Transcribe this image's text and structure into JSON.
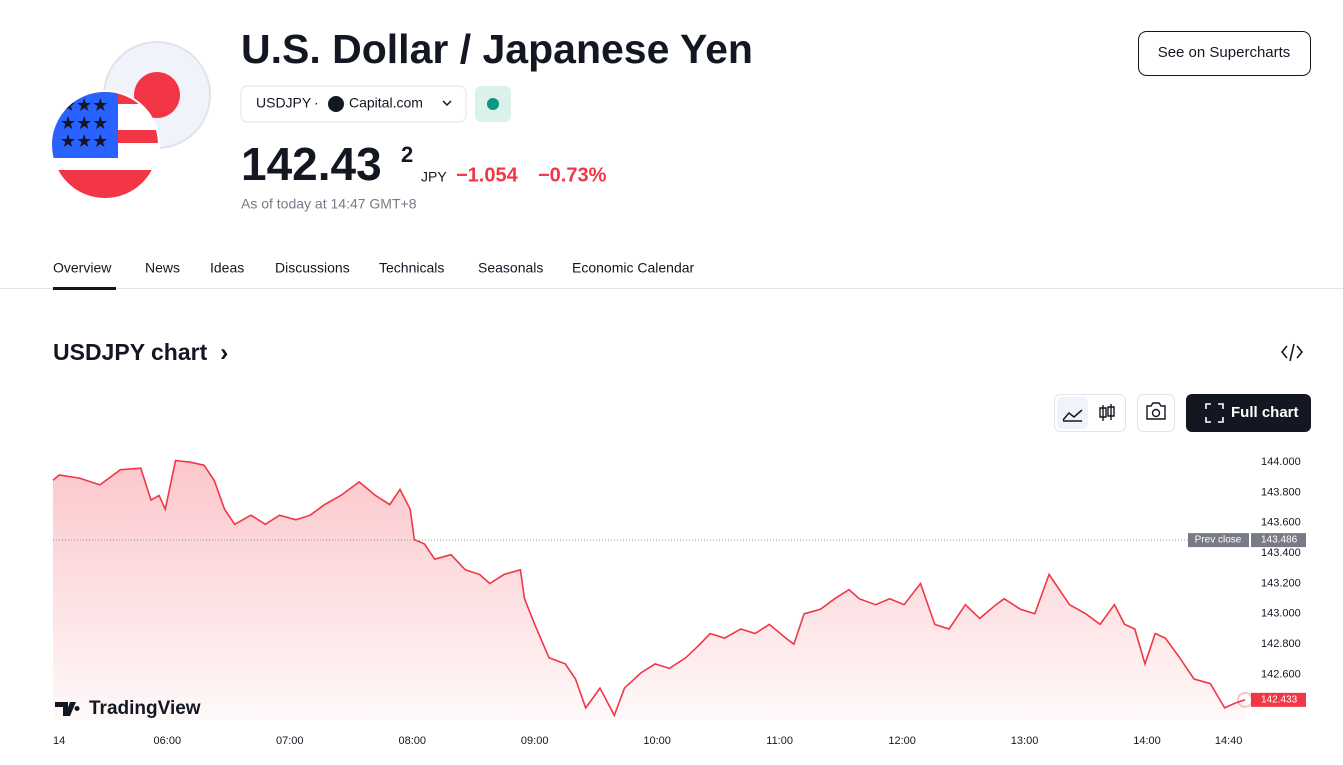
{
  "header": {
    "title": "U.S. Dollar / Japanese Yen",
    "symbol": "USDJPY",
    "separator": "·",
    "source": "Capital.com",
    "price": "142.43",
    "price_last_digit": "2",
    "currency": "JPY",
    "change": "−1.054",
    "change_percent": "−0.73%",
    "as_of": "As of today at 14:47 GMT+8",
    "button": "See on Supercharts"
  },
  "tabs": [
    "Overview",
    "News",
    "Ideas",
    "Discussions",
    "Technicals",
    "Seasonals",
    "Economic Calendar"
  ],
  "chart_section": {
    "title": "USDJPY chart",
    "arrow": "›",
    "full_chart": "Full chart",
    "brand": "TradingView"
  },
  "chart_data": {
    "type": "line",
    "color": "#f23645",
    "x": [
      304,
      307,
      317,
      327,
      337,
      347,
      352,
      356,
      359,
      364,
      371,
      378,
      383,
      388,
      393,
      401,
      408,
      415,
      423,
      430,
      437,
      445,
      454,
      462,
      469,
      474,
      479,
      481,
      486,
      491,
      499,
      506,
      513,
      518,
      525,
      533,
      535,
      540,
      547,
      555,
      560,
      565,
      572,
      579,
      584,
      592,
      599,
      606,
      614,
      621,
      626,
      633,
      641,
      648,
      655,
      663,
      667,
      672,
      680,
      687,
      694,
      699,
      707,
      714,
      721,
      729,
      736,
      743,
      751,
      758,
      766,
      770,
      778,
      785,
      792,
      797,
      802,
      810,
      817,
      824,
      829,
      834,
      839,
      844,
      849,
      856,
      863,
      871,
      878,
      883,
      888
    ],
    "values": [
      143.88,
      143.915,
      143.895,
      143.85,
      143.95,
      143.96,
      143.75,
      143.78,
      143.69,
      144.01,
      144.0,
      143.98,
      143.88,
      143.69,
      143.59,
      143.65,
      143.59,
      143.65,
      143.62,
      143.65,
      143.72,
      143.78,
      143.87,
      143.78,
      143.72,
      143.82,
      143.69,
      143.49,
      143.46,
      143.36,
      143.39,
      143.29,
      143.26,
      143.2,
      143.26,
      143.29,
      143.1,
      142.93,
      142.71,
      142.67,
      142.57,
      142.38,
      142.51,
      142.33,
      142.51,
      142.61,
      142.67,
      142.64,
      142.71,
      142.8,
      142.87,
      142.84,
      142.9,
      142.87,
      142.93,
      142.84,
      142.8,
      143.0,
      143.03,
      143.1,
      143.16,
      143.1,
      143.06,
      143.1,
      143.06,
      143.2,
      142.93,
      142.9,
      143.06,
      142.97,
      143.06,
      143.1,
      143.03,
      143.0,
      143.26,
      143.16,
      143.06,
      143.0,
      142.93,
      143.06,
      142.93,
      142.9,
      142.67,
      142.87,
      142.84,
      142.71,
      142.57,
      142.54,
      142.38,
      142.41,
      142.433
    ],
    "xlim": [
      304,
      888
    ],
    "xticks": [
      {
        "value": 307,
        "label": "14"
      },
      {
        "value": 360,
        "label": "06:00"
      },
      {
        "value": 420,
        "label": "07:00"
      },
      {
        "value": 480,
        "label": "08:00"
      },
      {
        "value": 540,
        "label": "09:00"
      },
      {
        "value": 600,
        "label": "10:00"
      },
      {
        "value": 660,
        "label": "11:00"
      },
      {
        "value": 720,
        "label": "12:00"
      },
      {
        "value": 780,
        "label": "13:00"
      },
      {
        "value": 840,
        "label": "14:00"
      },
      {
        "value": 880,
        "label": "14:40"
      }
    ],
    "ylim": [
      142.3,
      144.08
    ],
    "yticks": [
      {
        "value": 142.6,
        "label": "142.600"
      },
      {
        "value": 142.8,
        "label": "142.800"
      },
      {
        "value": 143,
        "label": "143.000"
      },
      {
        "value": 143.2,
        "label": "143.200"
      },
      {
        "value": 143.4,
        "label": "143.400"
      },
      {
        "value": 143.6,
        "label": "143.600"
      },
      {
        "value": 143.8,
        "label": "143.800"
      },
      {
        "value": 144,
        "label": "144.000"
      }
    ],
    "prev_close": {
      "value": 143.486,
      "label": "143.486",
      "text": "Prev close"
    },
    "last_price": {
      "value": 142.433,
      "label": "142.433"
    }
  }
}
